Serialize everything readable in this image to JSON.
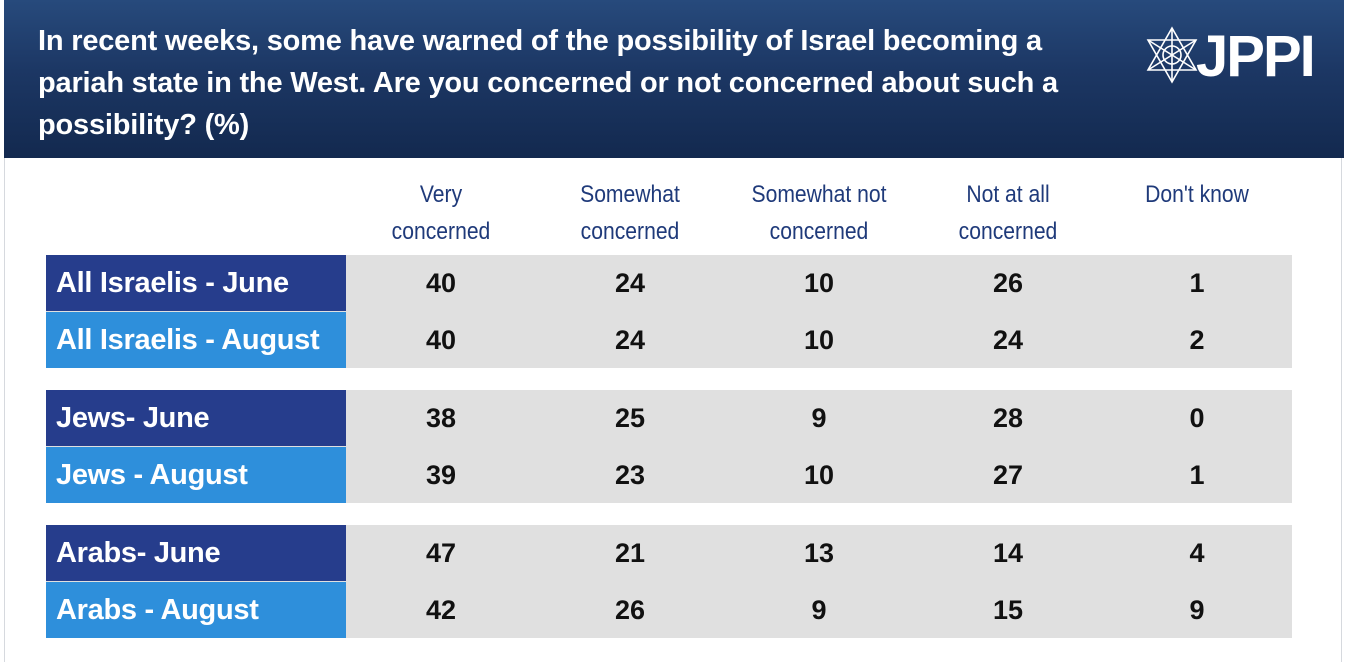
{
  "header": {
    "question": "In recent weeks, some have warned of the possibility of Israel becoming a pariah state in the West. Are you concerned or not concerned about such a possibility? (%)",
    "logo_text": "JPPI",
    "logo_icon": "star-of-david-icon",
    "background_color": "#1c3764"
  },
  "chart_data": {
    "type": "table",
    "columns": [
      "Very concerned",
      "Somewhat concerned",
      "Somewhat not concerned",
      "Not at all concerned",
      "Don't know"
    ],
    "rows": [
      {
        "label": "All Israelis - June",
        "values": [
          40,
          24,
          10,
          26,
          1
        ]
      },
      {
        "label": "All Israelis - August",
        "values": [
          40,
          24,
          10,
          24,
          2
        ]
      },
      {
        "label": "Jews- June",
        "values": [
          38,
          25,
          9,
          28,
          0
        ]
      },
      {
        "label": "Jews - August",
        "values": [
          39,
          23,
          10,
          27,
          1
        ]
      },
      {
        "label": "Arabs- June",
        "values": [
          47,
          21,
          13,
          14,
          4
        ]
      },
      {
        "label": "Arabs - August",
        "values": [
          42,
          26,
          9,
          15,
          9
        ]
      }
    ],
    "colors": {
      "june_label": "#263d8c",
      "august_label": "#2e8fdb",
      "cell_background": "#e0e0e0",
      "header_text": "#1f3a7a"
    }
  }
}
